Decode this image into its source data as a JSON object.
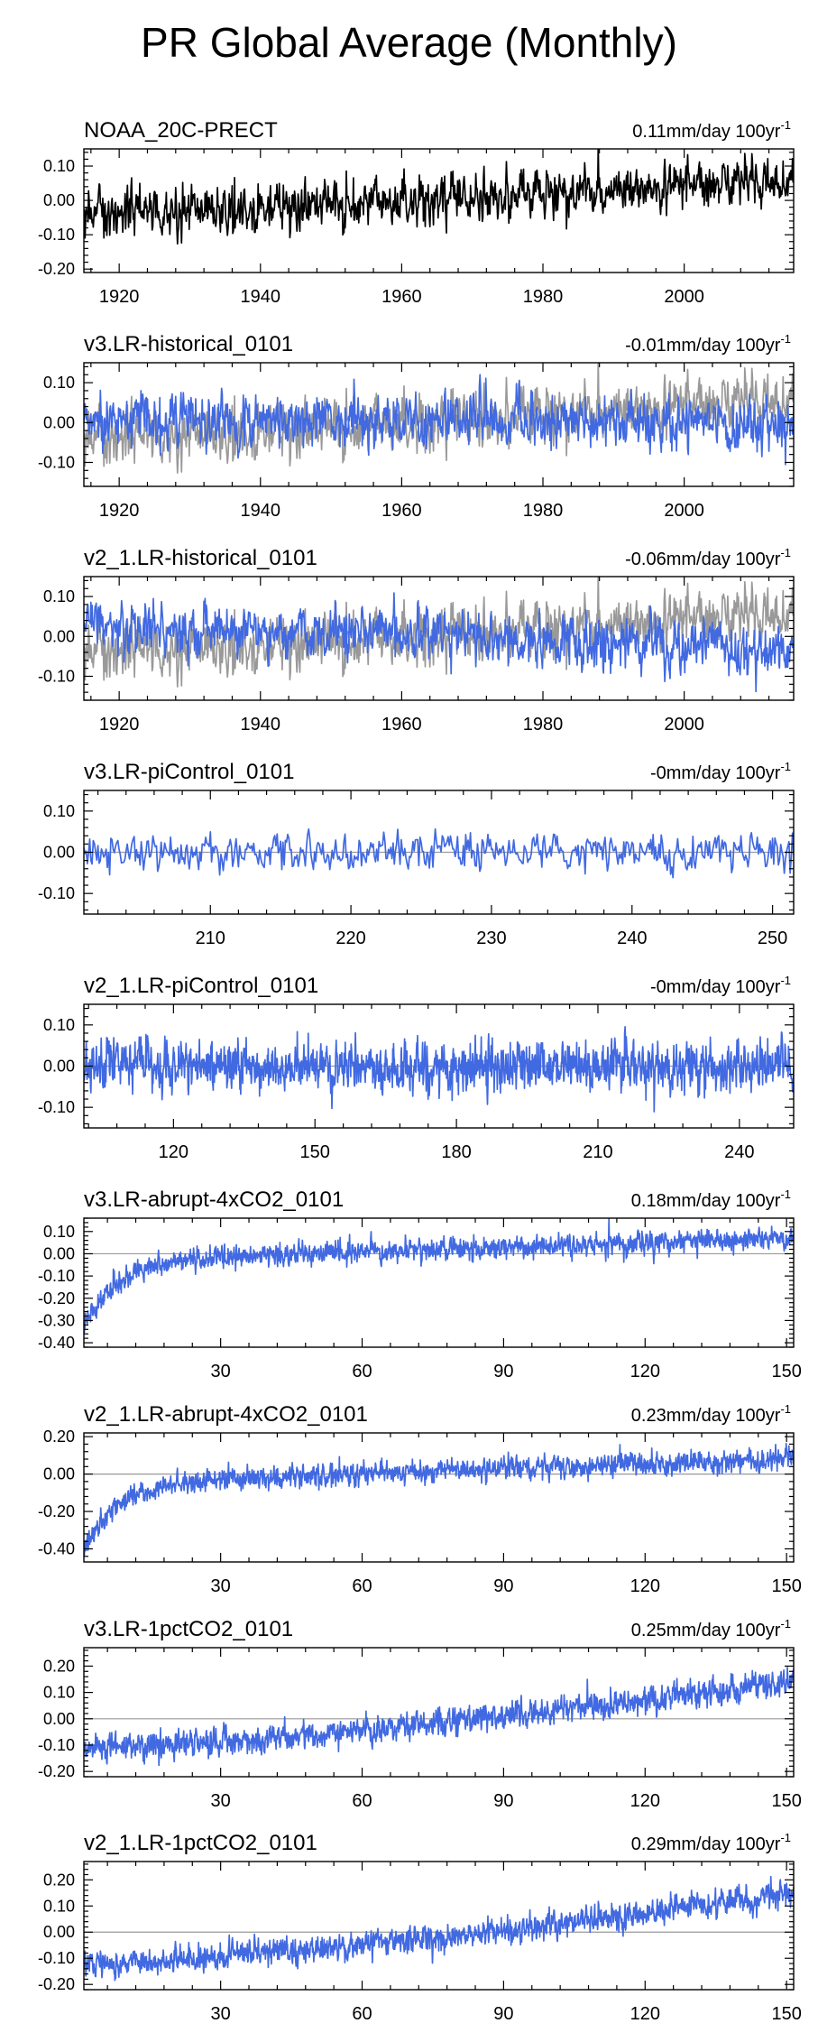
{
  "title": "PR Global Average (Monthly)",
  "colors": {
    "model": "#4169e1",
    "obs": "#000000",
    "obs_overlay": "#999999",
    "zero_line": "#999999",
    "frame": "#000000"
  },
  "chart_data": [
    {
      "type": "line",
      "title": "NOAA_20C-PRECT",
      "trend_value": "0.11mm/day 100yr",
      "trend_exp": "-1",
      "series": [
        {
          "name": "NOAA_20C-PRECT",
          "color": "obs",
          "start_y": -0.05,
          "end_y": 0.06,
          "decay_amp": 0,
          "noise": 0.042,
          "seed": 1
        }
      ],
      "xlim": [
        1915,
        2015.5
      ],
      "ylim": [
        -0.21,
        0.15
      ],
      "xticks": [
        1920,
        1940,
        1960,
        1980,
        2000
      ],
      "xtick_labels": [
        "1920",
        "1940",
        "1960",
        "1980",
        "2000"
      ],
      "yticks": [
        0.1,
        0.0,
        -0.1,
        -0.2
      ],
      "ytick_labels": [
        "0.10",
        "0.00",
        "-0.10",
        "-0.20"
      ],
      "zero_line": false
    },
    {
      "type": "line",
      "title": "v3.LR-historical_0101",
      "trend_value": "-0.01mm/day 100yr",
      "trend_exp": "-1",
      "series": [
        {
          "name": "NOAA_20C-PRECT",
          "color": "obs_overlay",
          "start_y": -0.05,
          "end_y": 0.06,
          "decay_amp": 0,
          "noise": 0.042,
          "seed": 1
        },
        {
          "name": "v3.LR-historical_0101",
          "color": "model",
          "start_y": 0.01,
          "end_y": 0.0,
          "decay_amp": 0,
          "noise": 0.038,
          "seed": 2
        }
      ],
      "xlim": [
        1915,
        2015.5
      ],
      "ylim": [
        -0.16,
        0.15
      ],
      "xticks": [
        1920,
        1940,
        1960,
        1980,
        2000
      ],
      "xtick_labels": [
        "1920",
        "1940",
        "1960",
        "1980",
        "2000"
      ],
      "yticks": [
        0.1,
        0.0,
        -0.1
      ],
      "ytick_labels": [
        "0.10",
        "0.00",
        "-0.10"
      ],
      "zero_line": false
    },
    {
      "type": "line",
      "title": "v2_1.LR-historical_0101",
      "trend_value": "-0.06mm/day 100yr",
      "trend_exp": "-1",
      "series": [
        {
          "name": "NOAA_20C-PRECT",
          "color": "obs_overlay",
          "start_y": -0.05,
          "end_y": 0.06,
          "decay_amp": 0,
          "noise": 0.042,
          "seed": 1
        },
        {
          "name": "v2_1.LR-historical_0101",
          "color": "model",
          "start_y": 0.03,
          "end_y": -0.03,
          "decay_amp": 0,
          "noise": 0.038,
          "seed": 3
        }
      ],
      "xlim": [
        1915,
        2015.5
      ],
      "ylim": [
        -0.16,
        0.15
      ],
      "xticks": [
        1920,
        1940,
        1960,
        1980,
        2000
      ],
      "xtick_labels": [
        "1920",
        "1940",
        "1960",
        "1980",
        "2000"
      ],
      "yticks": [
        0.1,
        0.0,
        -0.1
      ],
      "ytick_labels": [
        "0.10",
        "0.00",
        "-0.10"
      ],
      "zero_line": false
    },
    {
      "type": "line",
      "title": "v3.LR-piControl_0101",
      "trend_value": "-0mm/day 100yr",
      "trend_exp": "-1",
      "series": [
        {
          "name": "v3.LR-piControl_0101",
          "color": "model",
          "start_y": 0.0,
          "end_y": 0.0,
          "decay_amp": 0,
          "noise": 0.027,
          "seed": 4
        }
      ],
      "xlim": [
        201,
        251.5
      ],
      "ylim": [
        -0.15,
        0.15
      ],
      "xticks": [
        210,
        220,
        230,
        240,
        250
      ],
      "xtick_labels": [
        "210",
        "220",
        "230",
        "240",
        "250"
      ],
      "yticks": [
        0.1,
        0.0,
        -0.1
      ],
      "ytick_labels": [
        "0.10",
        "0.00",
        "-0.10"
      ],
      "zero_line": true
    },
    {
      "type": "line",
      "title": "v2_1.LR-piControl_0101",
      "trend_value": "-0mm/day 100yr",
      "trend_exp": "-1",
      "series": [
        {
          "name": "v2_1.LR-piControl_0101",
          "color": "model",
          "start_y": 0.0,
          "end_y": 0.0,
          "decay_amp": 0,
          "noise": 0.035,
          "seed": 5
        }
      ],
      "xlim": [
        101,
        251.5
      ],
      "ylim": [
        -0.15,
        0.15
      ],
      "xticks": [
        120,
        150,
        180,
        210,
        240
      ],
      "xtick_labels": [
        "120",
        "150",
        "180",
        "210",
        "240"
      ],
      "yticks": [
        0.1,
        0.0,
        -0.1
      ],
      "ytick_labels": [
        "0.10",
        "0.00",
        "-0.10"
      ],
      "zero_line": true
    },
    {
      "type": "line",
      "title": "v3.LR-abrupt-4xCO2_0101",
      "trend_value": "0.18mm/day 100yr",
      "trend_exp": "-1",
      "series": [
        {
          "name": "v3.LR-abrupt-4xCO2_0101",
          "color": "model",
          "start_y": -0.03,
          "end_y": 0.07,
          "decay_amp": 0.3,
          "decay_tau": 7,
          "noise": 0.03,
          "seed": 6
        }
      ],
      "xlim": [
        1,
        151.5
      ],
      "ylim": [
        -0.42,
        0.16
      ],
      "xticks": [
        30,
        60,
        90,
        120,
        150
      ],
      "xtick_labels": [
        "30",
        "60",
        "90",
        "120",
        "150"
      ],
      "yticks": [
        0.1,
        0.0,
        -0.1,
        -0.2,
        -0.3,
        -0.4
      ],
      "ytick_labels": [
        "0.10",
        "0.00",
        "-0.10",
        "-0.20",
        "-0.30",
        "-0.40"
      ],
      "zero_line": true
    },
    {
      "type": "line",
      "title": "v2_1.LR-abrupt-4xCO2_0101",
      "trend_value": "0.23mm/day 100yr",
      "trend_exp": "-1",
      "series": [
        {
          "name": "v2_1.LR-abrupt-4xCO2_0101",
          "color": "model",
          "start_y": -0.05,
          "end_y": 0.08,
          "decay_amp": 0.35,
          "decay_tau": 7,
          "noise": 0.035,
          "seed": 7
        }
      ],
      "xlim": [
        1,
        151.5
      ],
      "ylim": [
        -0.47,
        0.22
      ],
      "xticks": [
        30,
        60,
        90,
        120,
        150
      ],
      "xtick_labels": [
        "30",
        "60",
        "90",
        "120",
        "150"
      ],
      "yticks": [
        0.2,
        0.0,
        -0.2,
        -0.4
      ],
      "ytick_labels": [
        "0.20",
        "0.00",
        "-0.20",
        "-0.40"
      ],
      "zero_line": true
    },
    {
      "type": "line",
      "title": "v3.LR-1pctCO2_0101",
      "trend_value": "0.25mm/day 100yr",
      "trend_exp": "-1",
      "series": [
        {
          "name": "v3.LR-1pctCO2_0101",
          "color": "model",
          "start_y": -0.11,
          "end_y": 0.14,
          "curve": 1.4,
          "decay_amp": 0,
          "noise": 0.03,
          "seed": 8
        }
      ],
      "xlim": [
        1,
        151.5
      ],
      "ylim": [
        -0.22,
        0.27
      ],
      "xticks": [
        30,
        60,
        90,
        120,
        150
      ],
      "xtick_labels": [
        "30",
        "60",
        "90",
        "120",
        "150"
      ],
      "yticks": [
        0.2,
        0.1,
        0.0,
        -0.1,
        -0.2
      ],
      "ytick_labels": [
        "0.20",
        "0.10",
        "0.00",
        "-0.10",
        "-0.20"
      ],
      "zero_line": true
    },
    {
      "type": "line",
      "title": "v2_1.LR-1pctCO2_0101",
      "trend_value": "0.29mm/day 100yr",
      "trend_exp": "-1",
      "series": [
        {
          "name": "v2_1.LR-1pctCO2_0101",
          "color": "model",
          "start_y": -0.12,
          "end_y": 0.15,
          "curve": 1.4,
          "decay_amp": 0,
          "noise": 0.03,
          "seed": 9
        }
      ],
      "xlim": [
        1,
        151.5
      ],
      "ylim": [
        -0.22,
        0.27
      ],
      "xticks": [
        30,
        60,
        90,
        120,
        150
      ],
      "xtick_labels": [
        "30",
        "60",
        "90",
        "120",
        "150"
      ],
      "yticks": [
        0.2,
        0.1,
        0.0,
        -0.1,
        -0.2
      ],
      "ytick_labels": [
        "0.20",
        "0.10",
        "0.00",
        "-0.10",
        "-0.20"
      ],
      "zero_line": true
    }
  ]
}
